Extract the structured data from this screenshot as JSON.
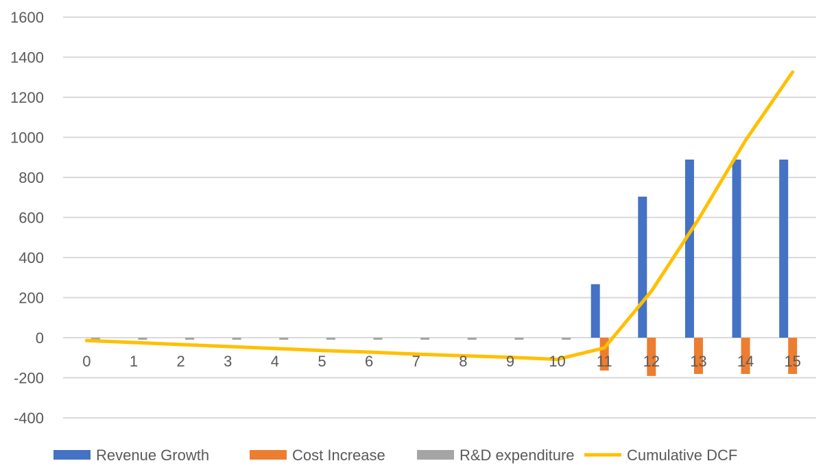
{
  "chart_data": {
    "type": "bar",
    "title": "",
    "xlabel": "",
    "ylabel": "",
    "ylim": [
      -400,
      1600
    ],
    "yticks": [
      -400,
      -200,
      0,
      200,
      400,
      600,
      800,
      1000,
      1200,
      1400,
      1600
    ],
    "grid": true,
    "legend_position": "bottom",
    "categories": [
      "0",
      "1",
      "2",
      "3",
      "4",
      "5",
      "6",
      "7",
      "8",
      "9",
      "10",
      "11",
      "12",
      "13",
      "14",
      "15"
    ],
    "series": [
      {
        "name": "Revenue Growth",
        "kind": "bar",
        "color": "#4472C4",
        "values": [
          0,
          0,
          0,
          0,
          0,
          0,
          0,
          0,
          0,
          0,
          0,
          267,
          704,
          889,
          889,
          889
        ]
      },
      {
        "name": "Cost Increase",
        "kind": "bar",
        "color": "#ED7D31",
        "values": [
          0,
          0,
          0,
          0,
          0,
          0,
          0,
          0,
          0,
          0,
          0,
          -164,
          -191,
          -181,
          -181,
          -181
        ]
      },
      {
        "name": "R&D expenditure",
        "kind": "bar",
        "color": "#A5A5A5",
        "values": [
          -10,
          -10,
          -10,
          -10,
          -10,
          -10,
          -10,
          -10,
          -10,
          -10,
          -10,
          0,
          0,
          0,
          0,
          0
        ]
      },
      {
        "name": "Cumulative DCF",
        "kind": "line",
        "color": "#FFC000",
        "values": [
          -14,
          -24,
          -34,
          -44,
          -54,
          -64,
          -72,
          -82,
          -90,
          -98,
          -108,
          -51,
          232,
          591,
          985,
          1326
        ]
      }
    ]
  }
}
